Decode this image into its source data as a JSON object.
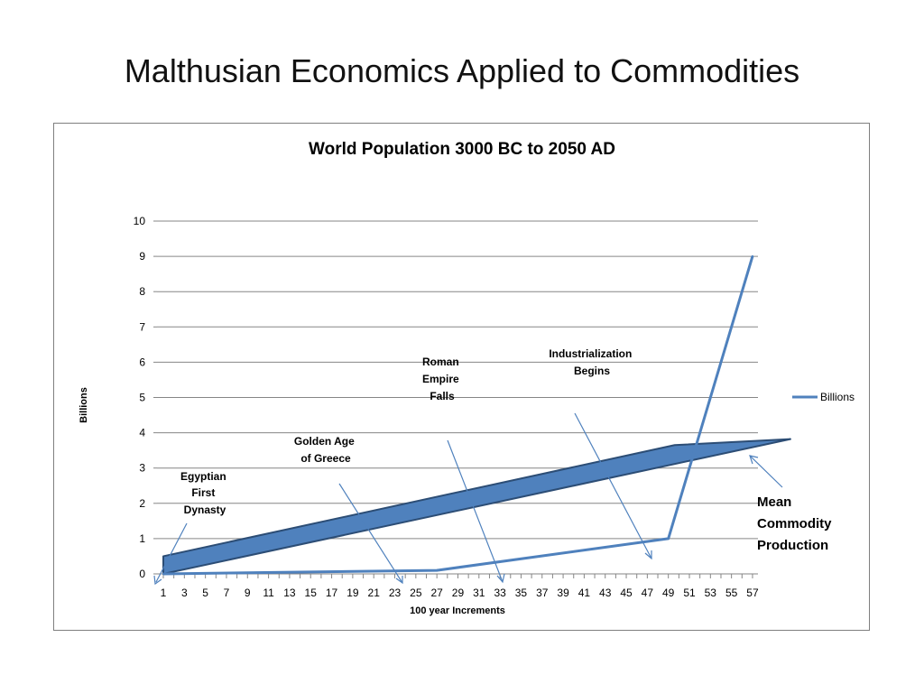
{
  "slide": {
    "title": "Malthusian Economics Applied to Commodities"
  },
  "chart_data": {
    "type": "line",
    "title": "World Population 3000 BC to 2050 AD",
    "xlabel": "100 year Increments",
    "ylabel": "Billions",
    "ylim": [
      0,
      10
    ],
    "yticks": [
      "0",
      "1",
      "2",
      "3",
      "4",
      "5",
      "6",
      "7",
      "8",
      "9",
      "10"
    ],
    "x_tick_labels": [
      "1",
      "3",
      "5",
      "7",
      "9",
      "11",
      "13",
      "15",
      "17",
      "19",
      "21",
      "23",
      "25",
      "27",
      "29",
      "31",
      "33",
      "35",
      "37",
      "39",
      "41",
      "43",
      "45",
      "47",
      "49",
      "51",
      "53",
      "55",
      "57"
    ],
    "grid": true,
    "legend_position": "right",
    "series": [
      {
        "name": "Billions",
        "color": "#4f81bd",
        "x": [
          1,
          27,
          49,
          57
        ],
        "y": [
          0,
          0.1,
          1.0,
          9.0
        ]
      }
    ],
    "band": {
      "label": "Mean Commodity Production",
      "color": "#4f81bd",
      "edge_color": "#2c4d75",
      "top": [
        [
          1,
          0.5
        ],
        [
          49.6,
          3.65
        ],
        [
          60.6,
          3.82
        ]
      ],
      "bottom": [
        [
          1,
          0
        ],
        [
          60.6,
          3.82
        ]
      ]
    },
    "annotations": [
      {
        "lines": [
          "Egyptian",
          "First",
          "Dynasty"
        ]
      },
      {
        "lines": [
          "Golden Age",
          "of Greece"
        ]
      },
      {
        "lines": [
          "Roman",
          "Empire",
          "Falls"
        ]
      },
      {
        "lines": [
          "Industrialization",
          "Begins"
        ]
      },
      {
        "lines": [
          "Mean",
          "Commodity",
          "Production"
        ]
      }
    ]
  }
}
